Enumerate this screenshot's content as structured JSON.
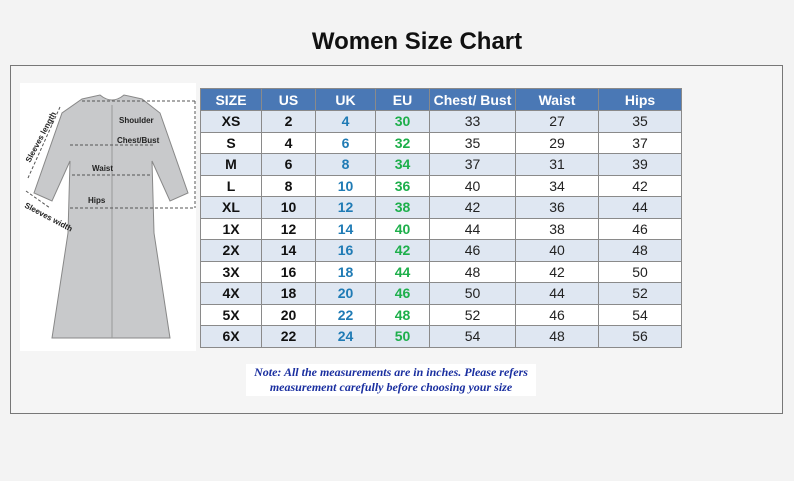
{
  "header": {
    "title": "Women Size Chart"
  },
  "figure": {
    "labels": [
      "Shoulder",
      "Chest/Bust",
      "Waist",
      "Hips",
      "Sleeves length",
      "Sleeves width"
    ]
  },
  "table": {
    "columns": [
      "SIZE",
      "US",
      "UK",
      "EU",
      "Chest/ Bust",
      "Waist",
      "Hips"
    ],
    "rows": [
      [
        "XS",
        "2",
        "4",
        "30",
        "33",
        "27",
        "35"
      ],
      [
        "S",
        "4",
        "6",
        "32",
        "35",
        "29",
        "37"
      ],
      [
        "M",
        "6",
        "8",
        "34",
        "37",
        "31",
        "39"
      ],
      [
        "L",
        "8",
        "10",
        "36",
        "40",
        "34",
        "42"
      ],
      [
        "XL",
        "10",
        "12",
        "38",
        "42",
        "36",
        "44"
      ],
      [
        "1X",
        "12",
        "14",
        "40",
        "44",
        "38",
        "46"
      ],
      [
        "2X",
        "14",
        "16",
        "42",
        "46",
        "40",
        "48"
      ],
      [
        "3X",
        "16",
        "18",
        "44",
        "48",
        "42",
        "50"
      ],
      [
        "4X",
        "18",
        "20",
        "46",
        "50",
        "44",
        "52"
      ],
      [
        "5X",
        "20",
        "22",
        "48",
        "52",
        "46",
        "54"
      ],
      [
        "6X",
        "22",
        "24",
        "50",
        "54",
        "48",
        "56"
      ]
    ]
  },
  "note": {
    "lines": [
      "Note: All the measurements are in inches. Please refers",
      "measurement carefully before choosing your size"
    ]
  }
}
